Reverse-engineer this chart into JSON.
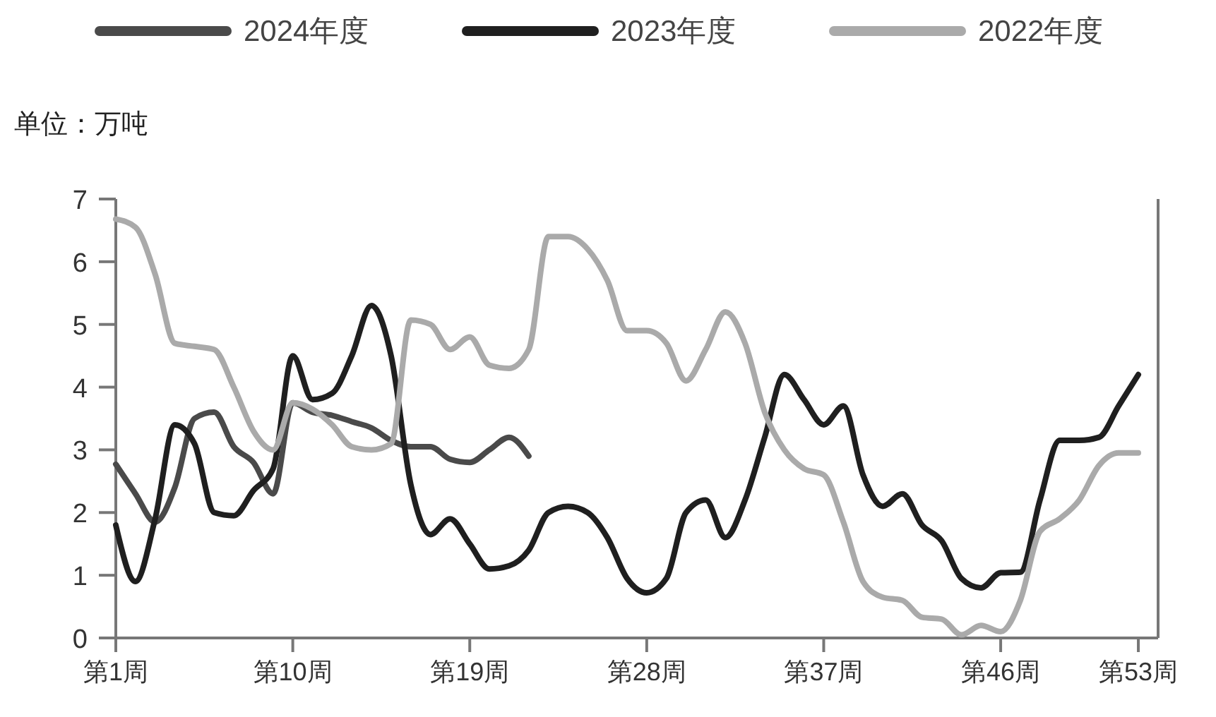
{
  "chart_data": {
    "type": "line",
    "ylabel": "单位：万吨",
    "legend": "top",
    "grid": false,
    "marker": "none",
    "line_style": "solid",
    "ylim": [
      0,
      7
    ],
    "yticks": [
      0,
      1,
      2,
      3,
      4,
      5,
      6,
      7
    ],
    "categories": [
      "第1周",
      null,
      null,
      null,
      null,
      null,
      null,
      null,
      null,
      "第10周",
      null,
      null,
      null,
      null,
      null,
      null,
      null,
      null,
      "第19周",
      null,
      null,
      null,
      null,
      null,
      null,
      null,
      null,
      "第28周",
      null,
      null,
      null,
      null,
      null,
      null,
      null,
      null,
      "第37周",
      null,
      null,
      null,
      null,
      null,
      null,
      null,
      null,
      "第46周",
      null,
      null,
      null,
      null,
      null,
      null,
      "第53周"
    ],
    "series": [
      {
        "name": "2024年度",
        "color": "#4a4a4a",
        "values": [
          2.77,
          2.3,
          1.85,
          2.4,
          3.5,
          3.6,
          3.05,
          2.8,
          2.3,
          3.75,
          3.6,
          3.55,
          3.45,
          3.35,
          3.15,
          3.05,
          3.05,
          2.85,
          2.8,
          3.0,
          3.2,
          2.9,
          null,
          null,
          null,
          null,
          null,
          null,
          null,
          null,
          null,
          null,
          null,
          null,
          null,
          null,
          null,
          null,
          null,
          null,
          null,
          null,
          null,
          null,
          null,
          null,
          null,
          null,
          null,
          null,
          null,
          null,
          null
        ]
      },
      {
        "name": "2023年度",
        "color": "#1f1f1f",
        "values": [
          1.8,
          0.9,
          1.9,
          3.4,
          3.1,
          2.0,
          1.95,
          2.35,
          2.7,
          4.5,
          3.8,
          3.9,
          4.5,
          5.3,
          4.5,
          2.45,
          1.65,
          1.9,
          1.5,
          1.1,
          1.15,
          1.4,
          2.0,
          2.1,
          2.0,
          1.6,
          0.95,
          0.72,
          0.95,
          2.0,
          2.2,
          1.6,
          2.2,
          3.2,
          4.2,
          3.8,
          3.4,
          3.7,
          2.6,
          2.1,
          2.3,
          1.8,
          1.55,
          0.95,
          0.8,
          1.04,
          1.05,
          2.2,
          3.15,
          3.15,
          3.2,
          3.7,
          4.2
        ]
      },
      {
        "name": "2022年度",
        "color": "#aaaaaa",
        "values": [
          6.68,
          6.55,
          5.8,
          4.7,
          4.65,
          4.6,
          4.0,
          3.3,
          3.0,
          3.75,
          3.65,
          3.4,
          3.05,
          3.0,
          3.1,
          5.07,
          5.0,
          4.6,
          4.8,
          4.35,
          4.3,
          4.6,
          6.4,
          6.4,
          6.2,
          5.7,
          4.9,
          4.9,
          4.7,
          4.1,
          4.6,
          5.2,
          4.7,
          3.6,
          3.0,
          2.7,
          2.6,
          1.85,
          0.9,
          0.65,
          0.6,
          0.33,
          0.3,
          0.05,
          0.2,
          0.1,
          0.6,
          1.7,
          1.9,
          2.2,
          2.75,
          2.95,
          2.95
        ]
      }
    ]
  }
}
